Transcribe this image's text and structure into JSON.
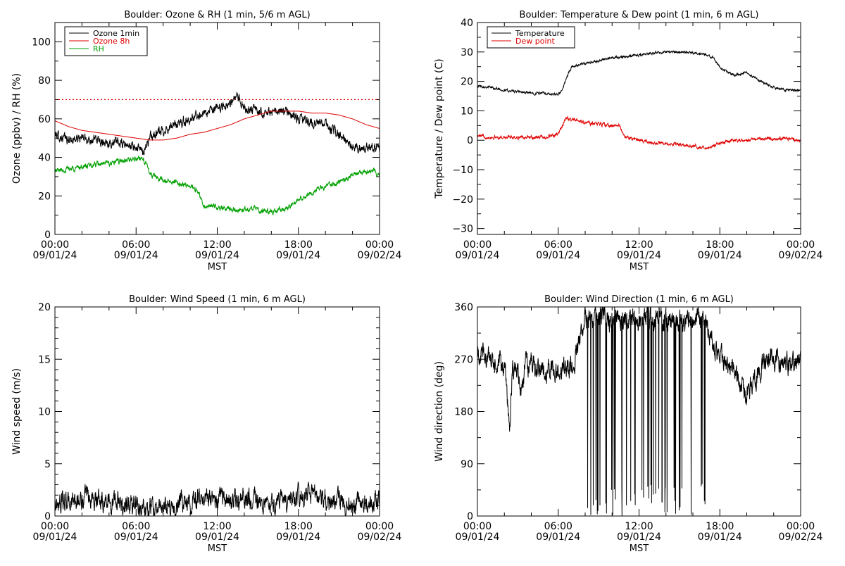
{
  "colors": {
    "black": "#000000",
    "red": "#e00000",
    "green": "#00a000",
    "background": "#ffffff"
  },
  "chart_data": [
    {
      "id": "ozone",
      "type": "line",
      "title": "Boulder: Ozone & RH (1 min, 5/6 m AGL)",
      "xlabel": "MST",
      "ylabel": "Ozone (ppbv) / RH (%)",
      "ylim": [
        0,
        110
      ],
      "yticks": [
        "0",
        "20",
        "40",
        "60",
        "80",
        "100"
      ],
      "yticks_values": [
        0,
        20,
        40,
        60,
        80,
        100
      ],
      "xlim": [
        0,
        24
      ],
      "xticks_time": [
        "00:00",
        "06:00",
        "12:00",
        "18:00",
        "00:00"
      ],
      "xticks_date": [
        "09/01/24",
        "09/01/24",
        "09/01/24",
        "09/01/24",
        "09/02/24"
      ],
      "grid": false,
      "legend_position": "top-left",
      "reference_line": {
        "y": 70,
        "color": "#e00000",
        "style": "dotted"
      },
      "series": [
        {
          "name": "Ozone 1min",
          "color": "#000000",
          "noise": 1.8,
          "x": [
            0,
            1,
            2,
            3,
            4,
            5,
            6,
            6.5,
            7,
            8,
            9,
            10,
            11,
            12,
            13,
            13.5,
            14,
            15,
            16,
            17,
            18,
            19,
            20,
            21,
            22,
            23,
            24
          ],
          "y": [
            52,
            49,
            50,
            49,
            48,
            47,
            45,
            43,
            50,
            54,
            57,
            60,
            63,
            65,
            69,
            71,
            66,
            64,
            63,
            64,
            60,
            58,
            57,
            52,
            45,
            45,
            46
          ]
        },
        {
          "name": "Ozone 8h",
          "color": "#e00000",
          "noise": 0,
          "x": [
            0,
            1,
            2,
            3,
            4,
            5,
            6,
            7,
            8,
            9,
            10,
            11,
            12,
            13,
            14,
            15,
            16,
            17,
            18,
            19,
            20,
            21,
            22,
            23,
            24
          ],
          "y": [
            59,
            56,
            54,
            53,
            52,
            51,
            50,
            49,
            49,
            50,
            52,
            53,
            55,
            57,
            60,
            62,
            64,
            64,
            64,
            63,
            63,
            62,
            60,
            57,
            55
          ]
        },
        {
          "name": "RH",
          "color": "#00a000",
          "noise": 1.0,
          "x": [
            0,
            1,
            2,
            3,
            4,
            5,
            6,
            6.5,
            7,
            8,
            9,
            10,
            10.5,
            11,
            12,
            13,
            14,
            15,
            16,
            17,
            18,
            19,
            20,
            21,
            22,
            23,
            24
          ],
          "y": [
            33,
            34,
            35,
            36,
            37,
            38,
            39,
            40,
            32,
            28,
            27,
            25,
            23,
            15,
            14,
            13,
            13,
            13,
            12,
            13,
            18,
            22,
            25,
            27,
            31,
            33,
            32
          ]
        }
      ]
    },
    {
      "id": "temperature",
      "type": "line",
      "title": "Boulder: Temperature & Dew point (1 min, 6 m AGL)",
      "xlabel": "MST",
      "ylabel": "Temperature / Dew point (C)",
      "ylim": [
        -32,
        40
      ],
      "yticks": [
        "−30",
        "−20",
        "−10",
        "0",
        "10",
        "20",
        "30",
        "40"
      ],
      "yticks_values": [
        -30,
        -20,
        -10,
        0,
        10,
        20,
        30,
        40
      ],
      "xlim": [
        0,
        24
      ],
      "xticks_time": [
        "00:00",
        "06:00",
        "12:00",
        "18:00",
        "00:00"
      ],
      "xticks_date": [
        "09/01/24",
        "09/01/24",
        "09/01/24",
        "09/01/24",
        "09/02/24"
      ],
      "grid": false,
      "legend_position": "top-left",
      "series": [
        {
          "name": "Temperature",
          "color": "#000000",
          "noise": 0.3,
          "x": [
            0,
            1,
            2,
            3,
            4,
            5,
            5.5,
            6,
            6.3,
            6.6,
            7,
            8,
            9,
            10,
            11,
            12,
            13,
            14,
            15,
            16,
            17,
            17.5,
            18,
            19,
            20,
            21,
            22,
            23,
            24
          ],
          "y": [
            18.5,
            18,
            17,
            16.5,
            16,
            16,
            15.5,
            15.5,
            17,
            21,
            25,
            26,
            27,
            28,
            28.5,
            29,
            29.5,
            30,
            30,
            29.5,
            29,
            28,
            25,
            22,
            23,
            20,
            18,
            17,
            17
          ]
        },
        {
          "name": "Dew point",
          "color": "#e00000",
          "noise": 0.4,
          "x": [
            0,
            1,
            2,
            3,
            4,
            5,
            6,
            6.3,
            6.6,
            7,
            8,
            9,
            10,
            10.5,
            11,
            12,
            13,
            14,
            15,
            16,
            17,
            18,
            19,
            20,
            21,
            22,
            23,
            24
          ],
          "y": [
            1.5,
            1,
            1,
            1,
            1,
            1,
            2,
            5,
            7.5,
            7,
            6,
            5.5,
            5,
            5,
            1,
            0,
            -1,
            -1,
            -1.5,
            -2,
            -2.5,
            -1,
            0,
            0,
            0.5,
            0.5,
            0.5,
            0
          ]
        }
      ]
    },
    {
      "id": "windspeed",
      "type": "line",
      "title": "Boulder: Wind Speed (1 min, 6 m AGL)",
      "xlabel": "MST",
      "ylabel": "Wind speed (m/s)",
      "ylim": [
        0,
        20
      ],
      "yticks": [
        "0",
        "5",
        "10",
        "15",
        "20"
      ],
      "yticks_values": [
        0,
        5,
        10,
        15,
        20
      ],
      "xlim": [
        0,
        24
      ],
      "xticks_time": [
        "00:00",
        "06:00",
        "12:00",
        "18:00",
        "00:00"
      ],
      "xticks_date": [
        "09/01/24",
        "09/01/24",
        "09/01/24",
        "09/01/24",
        "09/02/24"
      ],
      "grid": false,
      "series": [
        {
          "name": "",
          "color": "#000000",
          "noise": 0.7,
          "floor": 0,
          "x": [
            0,
            1,
            2,
            3,
            4,
            5,
            6,
            7,
            8,
            9,
            10,
            11,
            12,
            13,
            14,
            15,
            16,
            17,
            18,
            19,
            20,
            21,
            22,
            23,
            24
          ],
          "y": [
            1.2,
            1.3,
            1.5,
            1.8,
            1.5,
            1.2,
            1.0,
            0.8,
            0.7,
            1.0,
            1.6,
            1.8,
            1.6,
            1.6,
            1.7,
            1.5,
            1.2,
            1.2,
            2.0,
            2.2,
            1.6,
            1.4,
            1.2,
            1.3,
            1.2
          ]
        }
      ]
    },
    {
      "id": "winddir",
      "type": "line",
      "title": "Boulder: Wind Direction (1 min, 6 m AGL)",
      "xlabel": "MST",
      "ylabel": "Wind direction (deg)",
      "ylim": [
        0,
        360
      ],
      "yticks": [
        "0",
        "90",
        "180",
        "270",
        "360"
      ],
      "yticks_values": [
        0,
        90,
        180,
        270,
        360
      ],
      "xlim": [
        0,
        24
      ],
      "xticks_time": [
        "00:00",
        "06:00",
        "12:00",
        "18:00",
        "00:00"
      ],
      "xticks_date": [
        "09/01/24",
        "09/01/24",
        "09/01/24",
        "09/01/24",
        "09/02/24"
      ],
      "grid": false,
      "series": [
        {
          "name": "",
          "color": "#000000",
          "noise": 14,
          "floor": 0,
          "ceil": 360,
          "wrap_range": [
            8,
            17
          ],
          "x": [
            0,
            0.5,
            1,
            1.5,
            2,
            2.2,
            2.4,
            2.6,
            3,
            3.3,
            3.5,
            4,
            5,
            6,
            7,
            7.5,
            8,
            9,
            10,
            11,
            12,
            13,
            14,
            15,
            16,
            17,
            17.5,
            18,
            19,
            19.5,
            20,
            21,
            22,
            23,
            24
          ],
          "y": [
            275,
            280,
            265,
            255,
            255,
            220,
            140,
            255,
            250,
            210,
            255,
            260,
            255,
            250,
            260,
            290,
            340,
            340,
            340,
            340,
            340,
            340,
            340,
            340,
            340,
            330,
            290,
            270,
            260,
            230,
            210,
            250,
            270,
            260,
            265
          ]
        }
      ]
    }
  ]
}
